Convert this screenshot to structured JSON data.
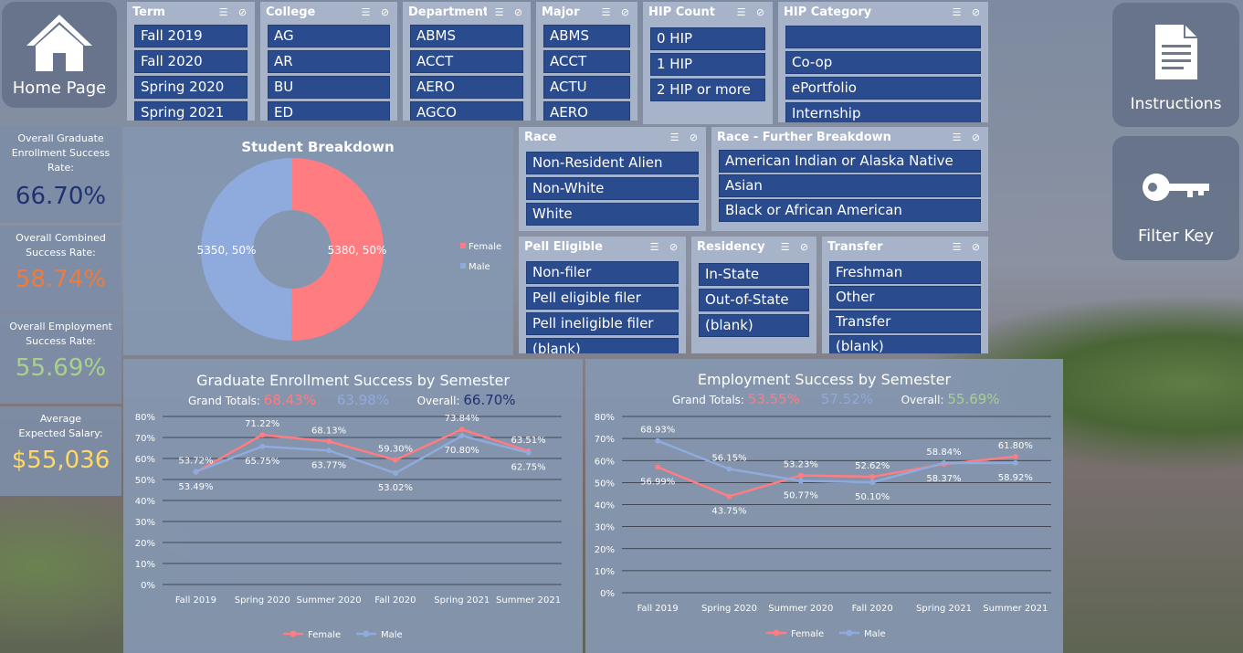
{
  "nav": {
    "home_label": "Home Page",
    "instructions_label": "Instructions",
    "filter_key_label": "Filter Key"
  },
  "kpis": [
    {
      "caption": "Overall Graduate Enrollment Success Rate:",
      "value": "66.70%",
      "color": "#1f3171"
    },
    {
      "caption": "Overall Combined Success Rate:",
      "value": "58.74%",
      "color": "#ef7b3a"
    },
    {
      "caption": "Overall Employment Success Rate:",
      "value": "55.69%",
      "color": "#a9d18e"
    },
    {
      "caption": "Average Expected Salary:",
      "value": "$55,036",
      "color": "#ffd966"
    }
  ],
  "slicers": {
    "term": {
      "title": "Term",
      "items": [
        "Fall 2019",
        "Fall 2020",
        "Spring 2020",
        "Spring 2021"
      ]
    },
    "college": {
      "title": "College",
      "items": [
        "AG",
        "AR",
        "BU",
        "ED"
      ]
    },
    "department": {
      "title": "Department",
      "items": [
        "ABMS",
        "ACCT",
        "AERO",
        "AGCO"
      ]
    },
    "major": {
      "title": "Major",
      "items": [
        "ABMS",
        "ACCT",
        "ACTU",
        "AERO"
      ]
    },
    "hip_count": {
      "title": "HIP Count",
      "items": [
        "0 HIP",
        "1 HIP",
        "2 HIP or more"
      ]
    },
    "hip_category": {
      "title": "HIP Category",
      "items": [
        "",
        "Co-op",
        "ePortfolio",
        "Internship"
      ]
    },
    "race": {
      "title": "Race",
      "items": [
        "Non-Resident Alien",
        "Non-White",
        "White"
      ]
    },
    "race_further": {
      "title": "Race - Further Breakdown",
      "items": [
        "American Indian or Alaska Native",
        "Asian",
        "Black or African American"
      ]
    },
    "pell": {
      "title": "Pell Eligible",
      "items": [
        "Non-filer",
        "Pell eligible filer",
        "Pell ineligible filer",
        "(blank)"
      ]
    },
    "residency": {
      "title": "Residency",
      "items": [
        "In-State",
        "Out-of-State",
        "(blank)"
      ]
    },
    "transfer": {
      "title": "Transfer",
      "items": [
        "Freshman",
        "Other",
        "Transfer",
        "(blank)"
      ]
    }
  },
  "colors": {
    "female": "#ff7c80",
    "male": "#8faadc"
  },
  "chart_data": [
    {
      "type": "pie",
      "title": "Student Breakdown",
      "categories": [
        "Female",
        "Male"
      ],
      "values": [
        5380,
        5350
      ],
      "labels": [
        "5380, 50%",
        "5350, 50%"
      ],
      "legend": [
        "Female",
        "Male"
      ]
    },
    {
      "type": "line",
      "title": "Graduate Enrollment Success by Semester",
      "totals": {
        "label": "Grand Totals:",
        "female": "68.43%",
        "male": "63.98%",
        "overall_label": "Overall:",
        "overall": "66.70%"
      },
      "categories": [
        "Fall 2019",
        "Spring 2020",
        "Summer 2020",
        "Fall 2020",
        "Spring 2021",
        "Summer 2021"
      ],
      "series": [
        {
          "name": "Female",
          "values": [
            53.49,
            71.22,
            68.13,
            59.3,
            73.84,
            63.51
          ]
        },
        {
          "name": "Male",
          "values": [
            53.72,
            65.75,
            63.77,
            53.02,
            70.8,
            62.75
          ]
        }
      ],
      "ylim": [
        0,
        80
      ],
      "yticks": [
        "0%",
        "10%",
        "20%",
        "30%",
        "40%",
        "50%",
        "60%",
        "70%",
        "80%"
      ]
    },
    {
      "type": "line",
      "title": "Employment Success by Semester",
      "totals": {
        "label": "Grand Totals:",
        "female": "53.55%",
        "male": "57.52%",
        "overall_label": "Overall:",
        "overall": "55.69%"
      },
      "categories": [
        "Fall 2019",
        "Spring 2020",
        "Summer 2020",
        "Fall 2020",
        "Spring 2021",
        "Summer 2021"
      ],
      "series": [
        {
          "name": "Female",
          "values": [
            56.99,
            43.75,
            53.23,
            52.62,
            58.37,
            61.8
          ]
        },
        {
          "name": "Male",
          "values": [
            68.93,
            56.15,
            50.77,
            50.1,
            58.84,
            58.92
          ]
        }
      ],
      "ylim": [
        0,
        80
      ],
      "yticks": [
        "0%",
        "10%",
        "20%",
        "30%",
        "40%",
        "50%",
        "60%",
        "70%",
        "80%"
      ]
    }
  ]
}
